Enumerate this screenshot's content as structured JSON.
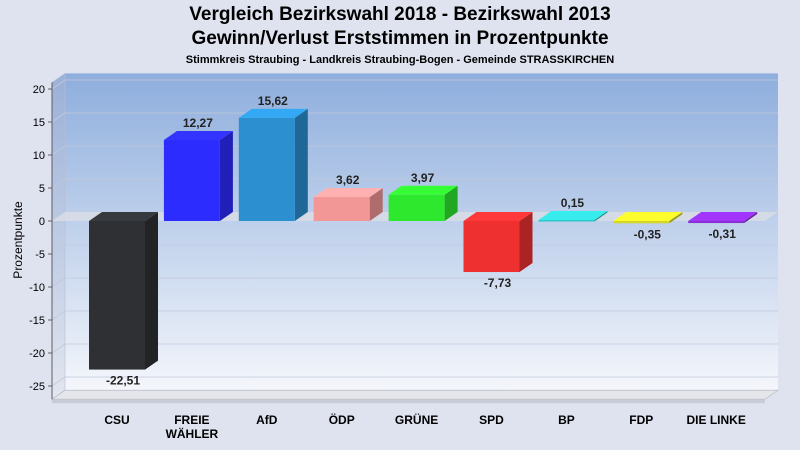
{
  "header": {
    "title_line1": "Vergleich Bezirkswahl 2018 - Bezirkswahl 2013",
    "title_line2": "Gewinn/Verlust Erststimmen in Prozentpunkte",
    "subtitle": "Stimmkreis Straubing - Landkreis Straubing-Bogen - Gemeinde STRASSKIRCHEN"
  },
  "chart_data": {
    "type": "bar",
    "title": "Vergleich Bezirkswahl 2018 - Bezirkswahl 2013 / Gewinn/Verlust Erststimmen in Prozentpunkte",
    "subtitle": "Stimmkreis Straubing - Landkreis Straubing-Bogen - Gemeinde STRASSKIRCHEN",
    "xlabel": "",
    "ylabel": "Prozentpunkte",
    "ylim": [
      -27,
      21
    ],
    "yticks": [
      -25,
      -20,
      -15,
      -10,
      -5,
      0,
      5,
      10,
      15,
      20
    ],
    "grid": true,
    "categories": [
      "CSU",
      "FREIE WÄHLER",
      "AfD",
      "ÖDP",
      "GRÜNE",
      "SPD",
      "BP",
      "FDP",
      "DIE LINKE"
    ],
    "category_lines": [
      [
        "CSU"
      ],
      [
        "FREIE",
        "WÄHLER"
      ],
      [
        "AfD"
      ],
      [
        "ÖDP"
      ],
      [
        "GRÜNE"
      ],
      [
        "SPD"
      ],
      [
        "BP"
      ],
      [
        "FDP"
      ],
      [
        "DIE LINKE"
      ]
    ],
    "values": [
      -22.51,
      12.27,
      15.62,
      3.62,
      3.97,
      -7.73,
      0.15,
      -0.35,
      -0.31
    ],
    "value_labels": [
      "-22,51",
      "12,27",
      "15,62",
      "3,62",
      "3,97",
      "-7,73",
      "0,15",
      "-0,35",
      "-0,31"
    ],
    "colors": [
      "#2e3034",
      "#2c2cff",
      "#2b8fd0",
      "#f29696",
      "#2ee82e",
      "#ee3030",
      "#2ec8c8",
      "#d6d626",
      "#8a2ed6"
    ]
  }
}
